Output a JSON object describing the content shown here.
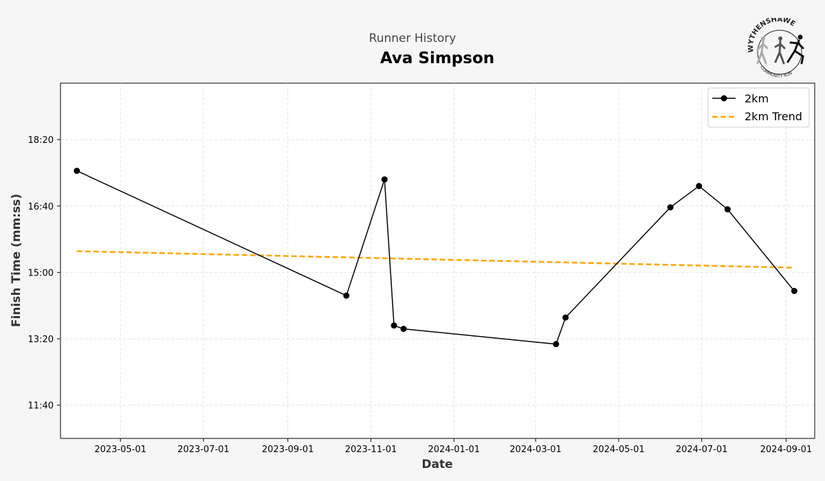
{
  "header": {
    "suptitle": "Runner History",
    "runner_name": "Ava Simpson"
  },
  "logo": {
    "text_top": "WYTHENSHAWE",
    "text_bottom": "COMMUNITY RUN",
    "icon": "runners-logo-icon"
  },
  "colors": {
    "background": "#f6f6f6",
    "series": "#000000",
    "trend": "#FFA500",
    "grid": "#dddddd"
  },
  "chart_data": {
    "type": "line",
    "xlabel": "Date",
    "ylabel": "Finish Time (mm:ss)",
    "x_ticks": [
      "2023-05-01",
      "2023-07-01",
      "2023-09-01",
      "2023-11-01",
      "2024-01-01",
      "2024-03-01",
      "2024-05-01",
      "2024-07-01",
      "2024-09-01"
    ],
    "y_ticks": [
      "11:40",
      "13:20",
      "15:00",
      "16:40",
      "18:20"
    ],
    "xlim": [
      "2023-03-18",
      "2024-09-22"
    ],
    "ylim": [
      "10:50",
      "19:45"
    ],
    "grid": true,
    "legend_position": "upper right",
    "series": [
      {
        "name": "2km",
        "style": "solid-line-with-markers",
        "x": [
          "2023-03-30",
          "2023-10-14",
          "2023-11-11",
          "2023-11-18",
          "2023-11-25",
          "2024-03-16",
          "2024-03-23",
          "2024-06-08",
          "2024-06-29",
          "2024-07-20",
          "2024-09-07"
        ],
        "y": [
          "17:33",
          "14:25",
          "17:20",
          "13:40",
          "13:35",
          "13:12",
          "13:52",
          "16:38",
          "17:10",
          "16:35",
          "14:32"
        ]
      },
      {
        "name": "2km Trend",
        "style": "dashed-line",
        "x": [
          "2023-03-30",
          "2024-09-07"
        ],
        "y": [
          "15:32",
          "15:07"
        ]
      }
    ]
  }
}
